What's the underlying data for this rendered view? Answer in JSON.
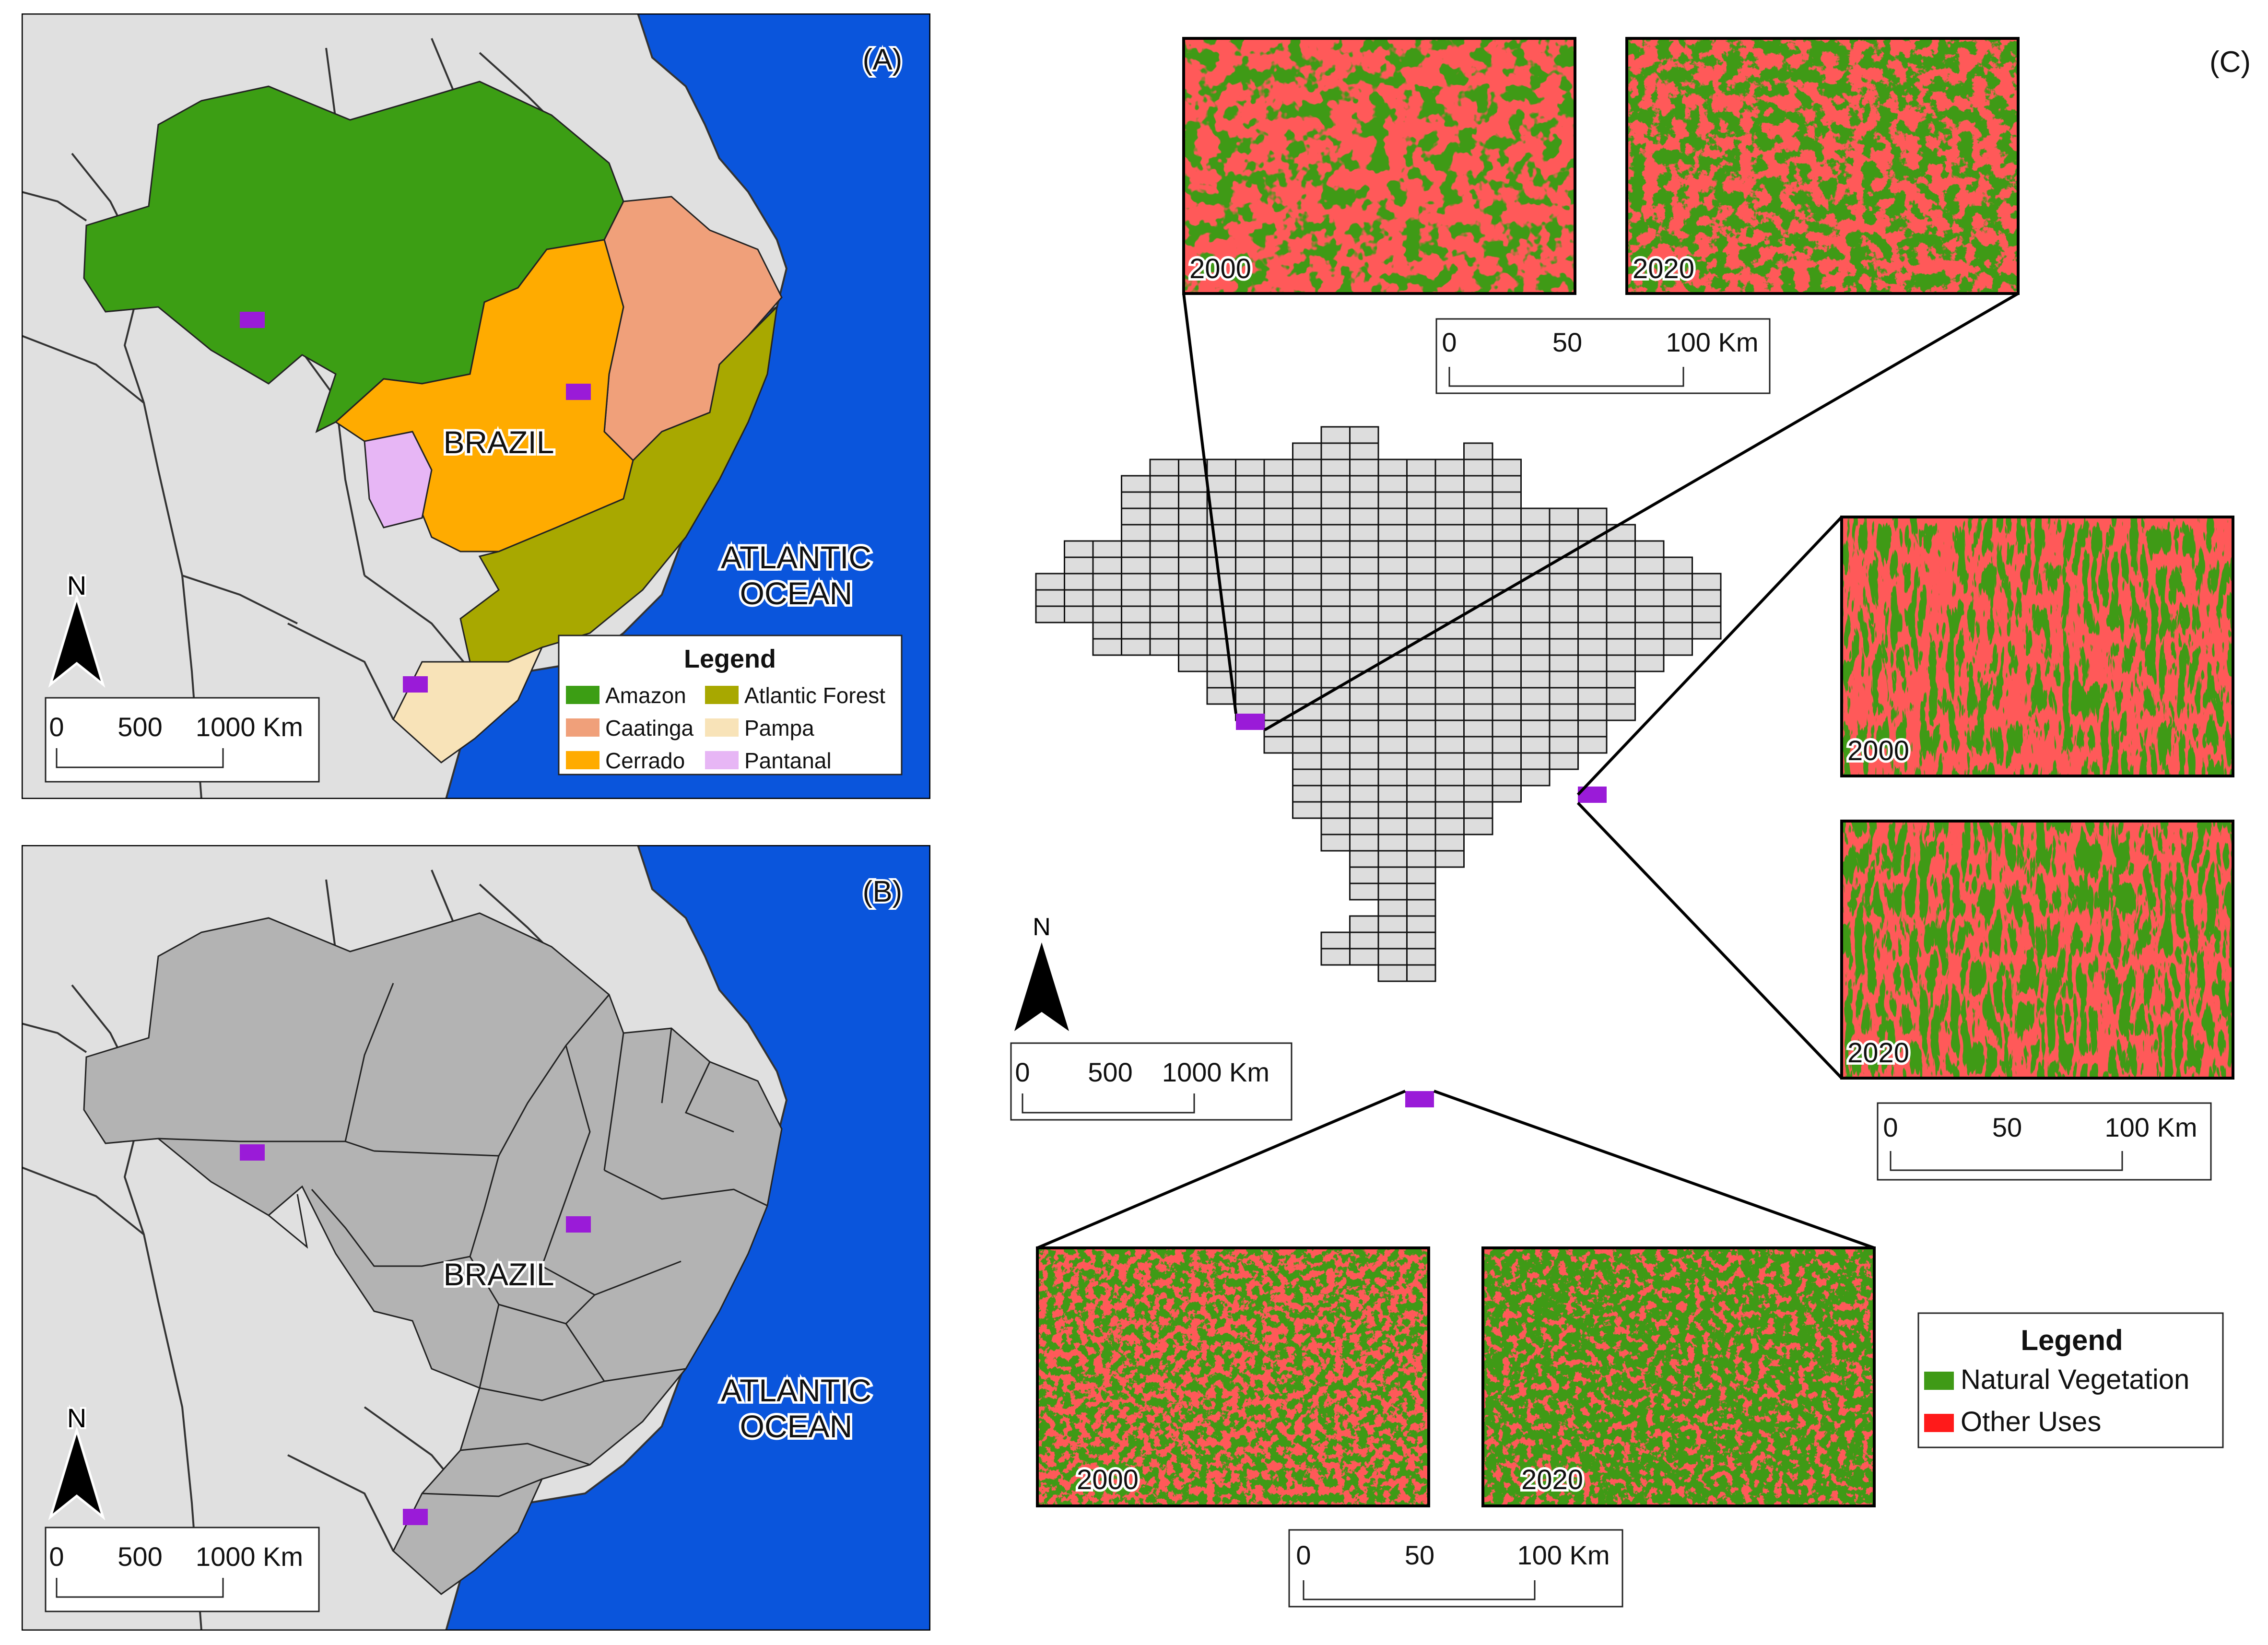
{
  "colors": {
    "ocean": "#0a55dc",
    "land": "#e0e0e0",
    "state": "#b3b3b3",
    "grid_cell": "#dddddd",
    "sample": "#9a1bd8",
    "amazon": "#3c9e14",
    "caatinga": "#f0a07a",
    "cerrado": "#ffab00",
    "atlantic_forest": "#a8a800",
    "pampa": "#f8e3b8",
    "pantanal": "#e7b6f5",
    "natural_vegetation": "#3f9a16",
    "other_uses": "#ff1a1a"
  },
  "panel_a": {
    "label": "(A)",
    "country": "BRAZIL",
    "ocean_line1": "ATLANTIC",
    "ocean_line2": "OCEAN",
    "north": "N",
    "scale": [
      "0",
      "500",
      "1000 Km"
    ],
    "legend_title": "Legend",
    "legend_items": [
      {
        "label": "Amazon",
        "color": "#3c9e14"
      },
      {
        "label": "Atlantic Forest",
        "color": "#a8a800"
      },
      {
        "label": "Caatinga",
        "color": "#f0a07a"
      },
      {
        "label": "Pampa",
        "color": "#f8e3b8"
      },
      {
        "label": "Cerrado",
        "color": "#ffab00"
      },
      {
        "label": "Pantanal",
        "color": "#e7b6f5"
      }
    ]
  },
  "panel_b": {
    "label": "(B)",
    "country": "BRAZIL",
    "ocean_line1": "ATLANTIC",
    "ocean_line2": "OCEAN",
    "north": "N",
    "scale": [
      "0",
      "500",
      "1000 Km"
    ]
  },
  "panel_c": {
    "label": "(C)",
    "north": "N",
    "scale": [
      "0",
      "500",
      "1000 Km"
    ],
    "inset_scale": [
      "0",
      "50",
      "100 Km"
    ],
    "years": [
      "2000",
      "2020"
    ],
    "legend_title": "Legend",
    "legend_items": [
      {
        "label": "Natural Vegetation",
        "color": "#3f9a16"
      },
      {
        "label": "Other Uses",
        "color": "#ff1a1a"
      }
    ]
  }
}
